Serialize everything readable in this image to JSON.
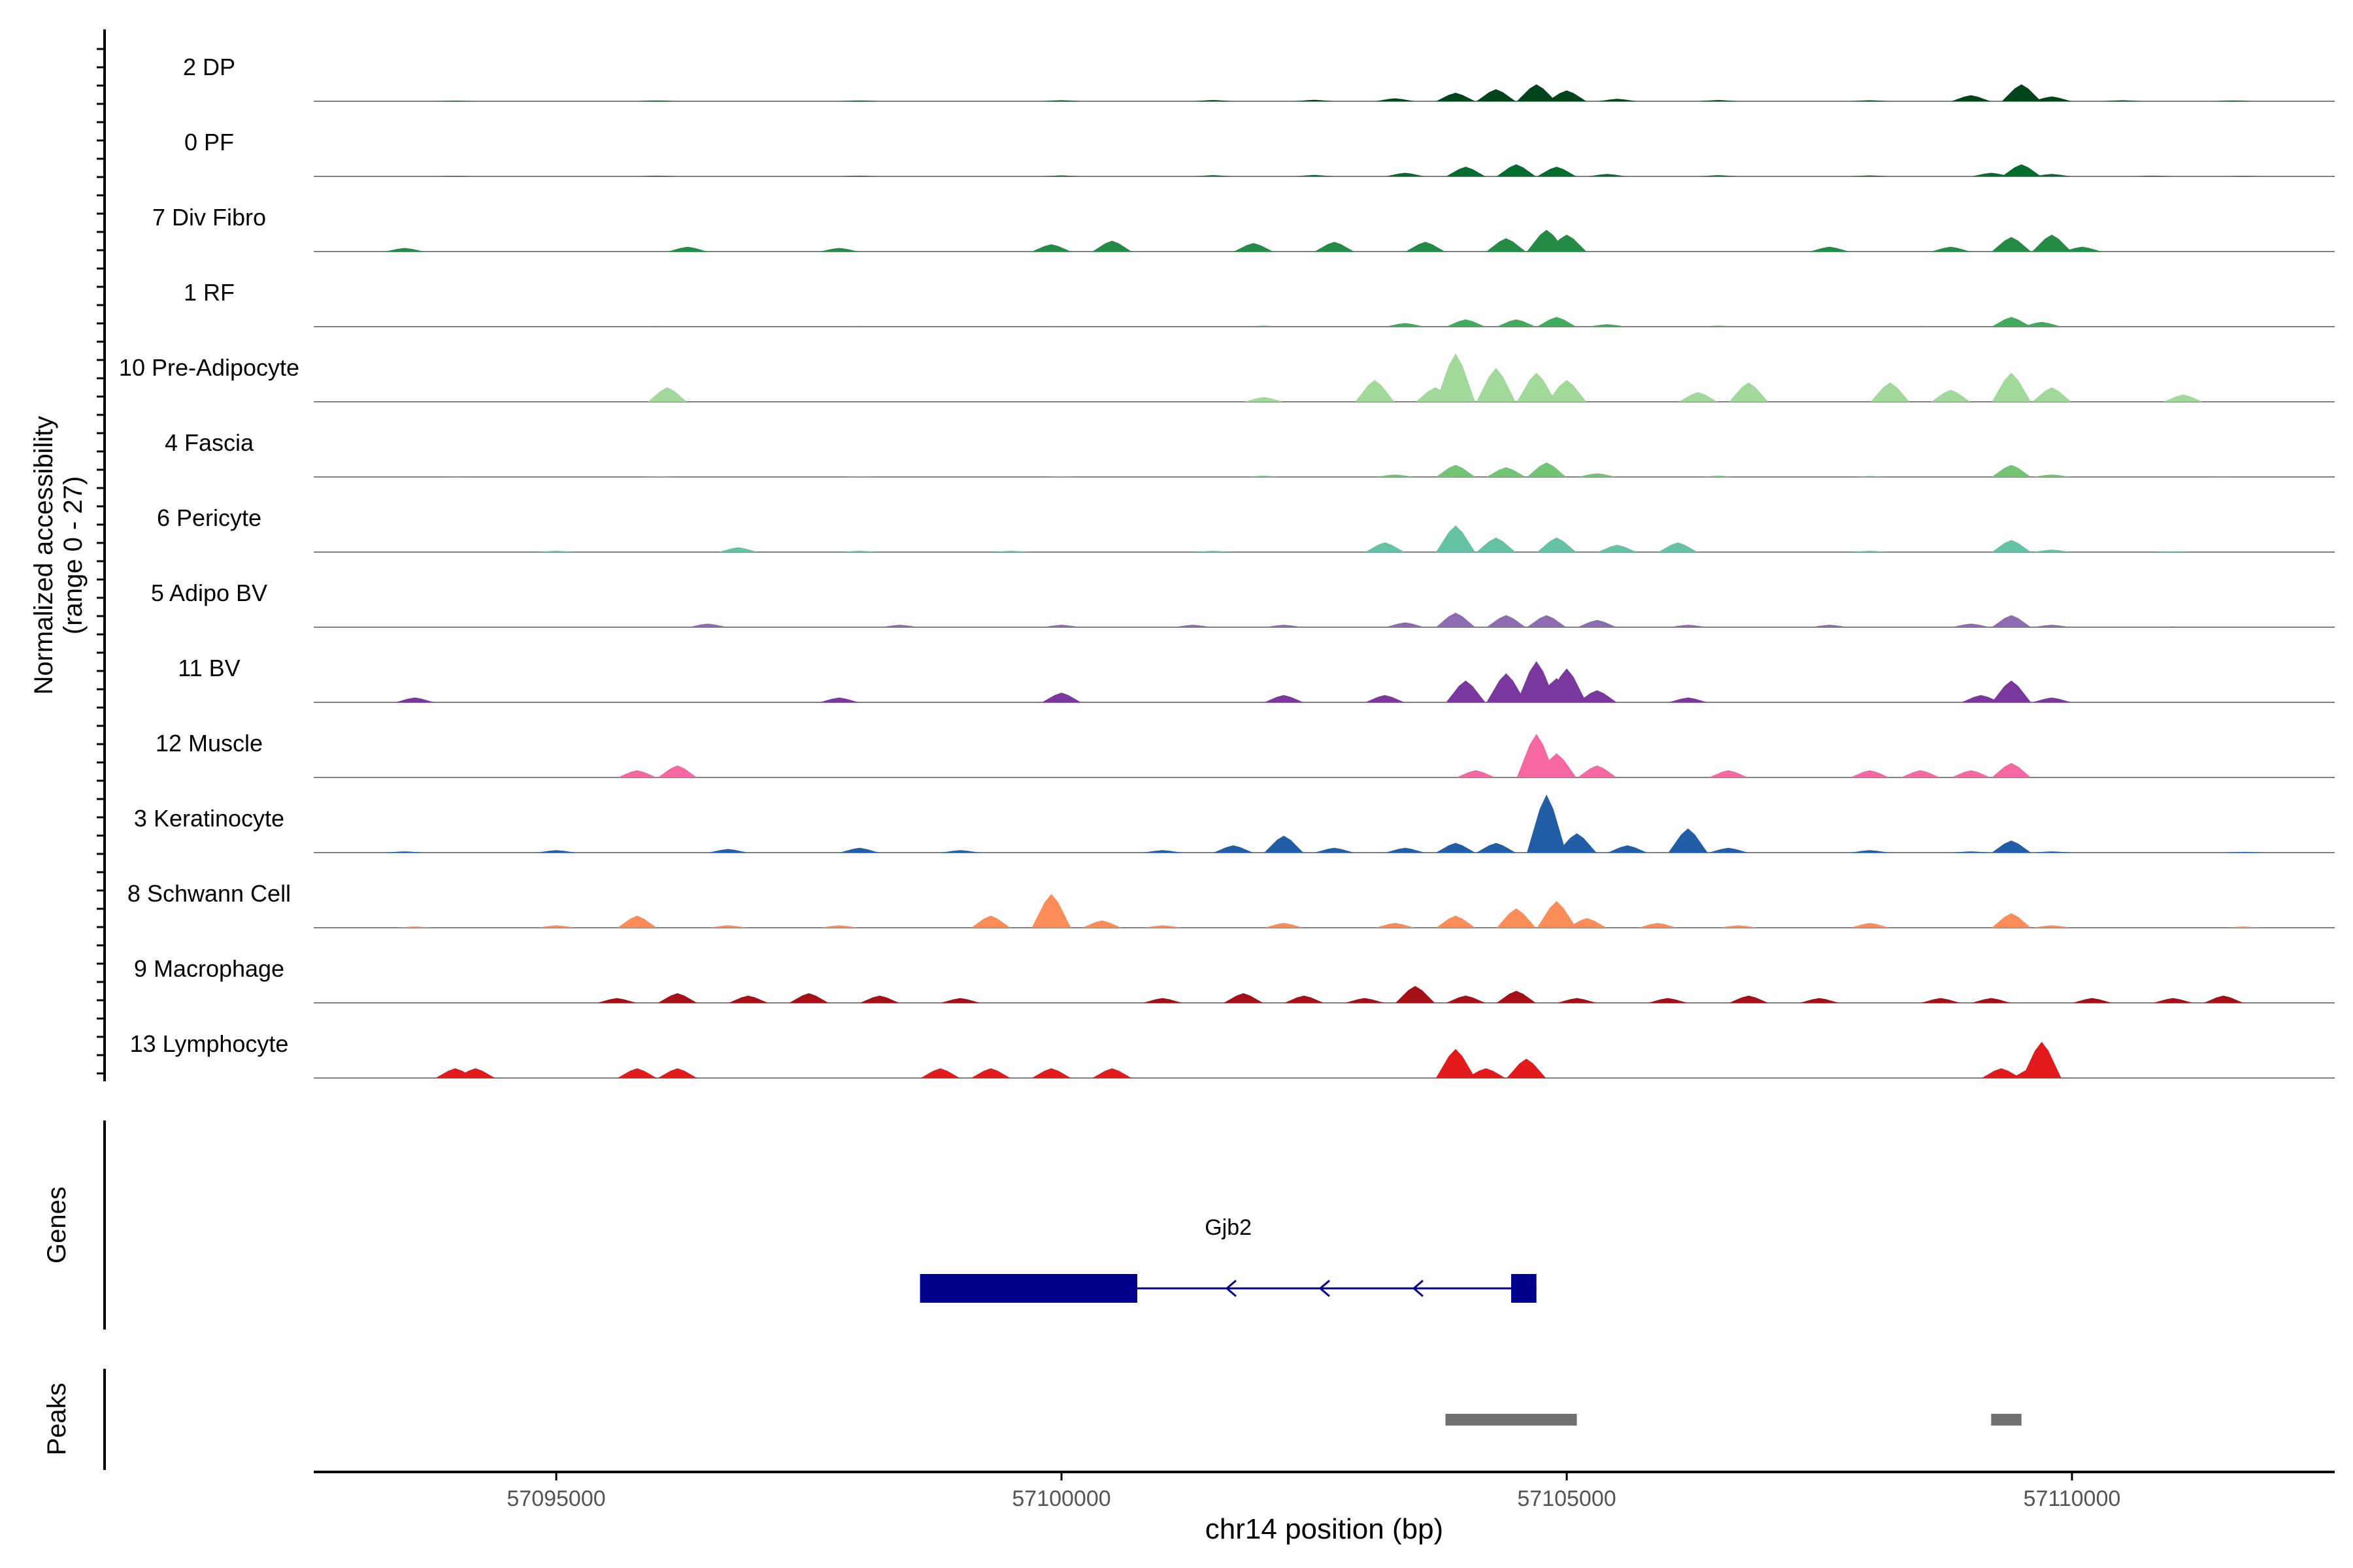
{
  "chart_data": {
    "type": "area",
    "x_chromosome": "chr14",
    "xlabel": "chr14 position (bp)",
    "xlim": [
      57092600,
      57112600
    ],
    "xticks": [
      57095000,
      57100000,
      57105000,
      57110000
    ],
    "xtick_labels": [
      "57095000",
      "57100000",
      "57105000",
      "57110000"
    ],
    "coverage_ylabel": [
      "Normalized accessibility",
      "(range 0 - 27)"
    ],
    "coverage_ylim": [
      0,
      27
    ],
    "legend": "none",
    "grid": false,
    "series": [
      {
        "name": "2 DP",
        "color": "#00441b",
        "points": [
          [
            57094000,
            0.2
          ],
          [
            57096000,
            0.3
          ],
          [
            57098000,
            0.3
          ],
          [
            57100000,
            0.4
          ],
          [
            57101500,
            0.5
          ],
          [
            57102500,
            0.6
          ],
          [
            57103300,
            1.2
          ],
          [
            57103900,
            3.5
          ],
          [
            57104300,
            5
          ],
          [
            57104700,
            7
          ],
          [
            57105000,
            4.5
          ],
          [
            57105500,
            1
          ],
          [
            57106500,
            0.5
          ],
          [
            57108000,
            0.4
          ],
          [
            57109000,
            2.5
          ],
          [
            57109500,
            7
          ],
          [
            57109800,
            2
          ],
          [
            57110500,
            0.4
          ],
          [
            57111600,
            0.3
          ]
        ]
      },
      {
        "name": "0 PF",
        "color": "#006d2c",
        "points": [
          [
            57094000,
            0.2
          ],
          [
            57096000,
            0.3
          ],
          [
            57098000,
            0.3
          ],
          [
            57100000,
            0.4
          ],
          [
            57101500,
            0.5
          ],
          [
            57102500,
            0.6
          ],
          [
            57103400,
            1.5
          ],
          [
            57104000,
            4
          ],
          [
            57104500,
            5
          ],
          [
            57104900,
            4
          ],
          [
            57105400,
            1
          ],
          [
            57106500,
            0.5
          ],
          [
            57108000,
            0.4
          ],
          [
            57109200,
            1.5
          ],
          [
            57109500,
            5
          ],
          [
            57109800,
            1
          ],
          [
            57110800,
            0.3
          ],
          [
            57111700,
            0.2
          ]
        ]
      },
      {
        "name": "7 Div Fibro",
        "color": "#238b45",
        "points": [
          [
            57093500,
            1.5
          ],
          [
            57096300,
            2
          ],
          [
            57097800,
            1.5
          ],
          [
            57099900,
            3
          ],
          [
            57100500,
            4.5
          ],
          [
            57101900,
            3.5
          ],
          [
            57102700,
            4
          ],
          [
            57103600,
            4
          ],
          [
            57104400,
            5.5
          ],
          [
            57104800,
            9
          ],
          [
            57105000,
            7
          ],
          [
            57107600,
            2
          ],
          [
            57108800,
            2
          ],
          [
            57109400,
            6
          ],
          [
            57109800,
            7
          ],
          [
            57110100,
            2
          ]
        ]
      },
      {
        "name": "1 RF",
        "color": "#41ab5d",
        "points": [
          [
            57094000,
            0.2
          ],
          [
            57096000,
            0.3
          ],
          [
            57098000,
            0.3
          ],
          [
            57100000,
            0.3
          ],
          [
            57102000,
            0.4
          ],
          [
            57103400,
            1.5
          ],
          [
            57104000,
            3
          ],
          [
            57104500,
            3
          ],
          [
            57104900,
            4
          ],
          [
            57105400,
            1
          ],
          [
            57106500,
            0.4
          ],
          [
            57108500,
            0.3
          ],
          [
            57109400,
            4
          ],
          [
            57109700,
            2
          ],
          [
            57110500,
            0.3
          ],
          [
            57111700,
            0.2
          ]
        ]
      },
      {
        "name": "10 Pre-Adipocyte",
        "color": "#a1d99b",
        "points": [
          [
            57096100,
            6
          ],
          [
            57102000,
            2
          ],
          [
            57103100,
            9
          ],
          [
            57103700,
            6
          ],
          [
            57103900,
            20
          ],
          [
            57104300,
            14
          ],
          [
            57104700,
            12
          ],
          [
            57105000,
            9
          ],
          [
            57106300,
            4
          ],
          [
            57106800,
            8
          ],
          [
            57108200,
            8
          ],
          [
            57108800,
            5
          ],
          [
            57109400,
            12
          ],
          [
            57109800,
            6
          ],
          [
            57111100,
            3
          ]
        ]
      },
      {
        "name": "4 Fascia",
        "color": "#74c476",
        "points": [
          [
            57094000,
            0.2
          ],
          [
            57096000,
            0.3
          ],
          [
            57098000,
            0.3
          ],
          [
            57100000,
            0.3
          ],
          [
            57102000,
            0.5
          ],
          [
            57103300,
            1
          ],
          [
            57103900,
            5
          ],
          [
            57104400,
            4
          ],
          [
            57104800,
            6
          ],
          [
            57105300,
            1.5
          ],
          [
            57106500,
            0.5
          ],
          [
            57108000,
            0.4
          ],
          [
            57109400,
            5
          ],
          [
            57109800,
            1
          ],
          [
            57111500,
            0.2
          ]
        ]
      },
      {
        "name": "6 Pericyte",
        "color": "#66c2a4",
        "points": [
          [
            57095000,
            0.5
          ],
          [
            57096800,
            2
          ],
          [
            57098000,
            0.5
          ],
          [
            57099500,
            0.5
          ],
          [
            57101500,
            0.5
          ],
          [
            57103200,
            4
          ],
          [
            57103900,
            11
          ],
          [
            57104300,
            6
          ],
          [
            57104900,
            6
          ],
          [
            57105500,
            3
          ],
          [
            57106100,
            4
          ],
          [
            57108000,
            0.5
          ],
          [
            57109400,
            5
          ],
          [
            57109800,
            1
          ],
          [
            57111000,
            0.3
          ]
        ]
      },
      {
        "name": "5 Adipo BV",
        "color": "#8c6bb1",
        "points": [
          [
            57094000,
            0.2
          ],
          [
            57096500,
            1.5
          ],
          [
            57098400,
            1
          ],
          [
            57100000,
            1
          ],
          [
            57101300,
            1
          ],
          [
            57102200,
            1
          ],
          [
            57103400,
            2
          ],
          [
            57103900,
            6
          ],
          [
            57104400,
            5
          ],
          [
            57104800,
            5
          ],
          [
            57105300,
            3
          ],
          [
            57106200,
            1
          ],
          [
            57107600,
            1
          ],
          [
            57109000,
            1.5
          ],
          [
            57109400,
            5
          ],
          [
            57109800,
            1
          ],
          [
            57111000,
            0.3
          ]
        ]
      },
      {
        "name": "11 BV",
        "color": "#7a379d",
        "points": [
          [
            57093600,
            2
          ],
          [
            57097800,
            2
          ],
          [
            57100000,
            4
          ],
          [
            57102200,
            3
          ],
          [
            57103200,
            3
          ],
          [
            57104000,
            9
          ],
          [
            57104400,
            12
          ],
          [
            57104700,
            17
          ],
          [
            57104900,
            10
          ],
          [
            57105000,
            14
          ],
          [
            57105300,
            5
          ],
          [
            57106200,
            2
          ],
          [
            57109100,
            3
          ],
          [
            57109400,
            9
          ],
          [
            57109800,
            2
          ]
        ]
      },
      {
        "name": "12 Muscle",
        "color": "#f768a1",
        "points": [
          [
            57095800,
            3
          ],
          [
            57096200,
            5
          ],
          [
            57104100,
            3
          ],
          [
            57104700,
            18
          ],
          [
            57104900,
            10
          ],
          [
            57105300,
            5
          ],
          [
            57106600,
            3
          ],
          [
            57108000,
            3
          ],
          [
            57108500,
            3
          ],
          [
            57109000,
            3
          ],
          [
            57109400,
            6
          ]
        ]
      },
      {
        "name": "3 Keratinocyte",
        "color": "#225ea8",
        "points": [
          [
            57093500,
            0.5
          ],
          [
            57095000,
            1
          ],
          [
            57096700,
            1.5
          ],
          [
            57098000,
            2
          ],
          [
            57099000,
            1
          ],
          [
            57101000,
            1
          ],
          [
            57101700,
            3
          ],
          [
            57102200,
            7
          ],
          [
            57102700,
            2
          ],
          [
            57103400,
            2
          ],
          [
            57103900,
            4
          ],
          [
            57104300,
            4
          ],
          [
            57104800,
            24
          ],
          [
            57105100,
            8
          ],
          [
            57105600,
            3
          ],
          [
            57106200,
            10
          ],
          [
            57106600,
            2
          ],
          [
            57108000,
            1
          ],
          [
            57109000,
            0.5
          ],
          [
            57109400,
            5
          ],
          [
            57109800,
            0.5
          ],
          [
            57111700,
            0.3
          ]
        ]
      },
      {
        "name": "8 Schwann Cell",
        "color": "#fc8d59",
        "points": [
          [
            57093600,
            0.5
          ],
          [
            57095000,
            1
          ],
          [
            57095800,
            5
          ],
          [
            57096700,
            1
          ],
          [
            57097800,
            1
          ],
          [
            57099300,
            5
          ],
          [
            57099900,
            14
          ],
          [
            57100400,
            3
          ],
          [
            57101000,
            1
          ],
          [
            57102200,
            2
          ],
          [
            57103300,
            2
          ],
          [
            57103900,
            5
          ],
          [
            57104500,
            8
          ],
          [
            57104900,
            11
          ],
          [
            57105200,
            4
          ],
          [
            57105900,
            2
          ],
          [
            57106700,
            1
          ],
          [
            57108000,
            2
          ],
          [
            57109400,
            6
          ],
          [
            57109800,
            1
          ],
          [
            57111700,
            0.5
          ]
        ]
      },
      {
        "name": "9 Macrophage",
        "color": "#a50f15",
        "points": [
          [
            57095600,
            2
          ],
          [
            57096200,
            4
          ],
          [
            57096900,
            3
          ],
          [
            57097500,
            4
          ],
          [
            57098200,
            3
          ],
          [
            57099000,
            2
          ],
          [
            57101000,
            2
          ],
          [
            57101800,
            4
          ],
          [
            57102400,
            3
          ],
          [
            57103000,
            2
          ],
          [
            57103500,
            7
          ],
          [
            57104000,
            3
          ],
          [
            57104500,
            5
          ],
          [
            57105100,
            2
          ],
          [
            57106000,
            2
          ],
          [
            57106800,
            3
          ],
          [
            57107500,
            2
          ],
          [
            57108700,
            2
          ],
          [
            57109200,
            2
          ],
          [
            57110200,
            2
          ],
          [
            57111000,
            2
          ],
          [
            57111500,
            3
          ]
        ]
      },
      {
        "name": "13 Lymphocyte",
        "color": "#e31a1c",
        "points": [
          [
            57094000,
            4
          ],
          [
            57094200,
            4
          ],
          [
            57095800,
            4
          ],
          [
            57096200,
            4
          ],
          [
            57098800,
            4
          ],
          [
            57099300,
            4
          ],
          [
            57099900,
            4
          ],
          [
            57100500,
            4
          ],
          [
            57103900,
            12
          ],
          [
            57104200,
            4
          ],
          [
            57104600,
            8
          ],
          [
            57109300,
            4
          ],
          [
            57109600,
            4
          ],
          [
            57109700,
            15
          ]
        ]
      }
    ],
    "genes": [
      {
        "name": "Gjb2",
        "strand": "-",
        "start": 57098600,
        "end": 57104700,
        "exons": [
          [
            57098600,
            57100750
          ],
          [
            57104450,
            57104700
          ]
        ]
      }
    ],
    "genes_ylabel": "Genes",
    "peaks_ylabel": "Peaks",
    "peaks": [
      [
        57103800,
        57105100
      ],
      [
        57109200,
        57109500
      ]
    ],
    "peak_color": "#707070"
  }
}
